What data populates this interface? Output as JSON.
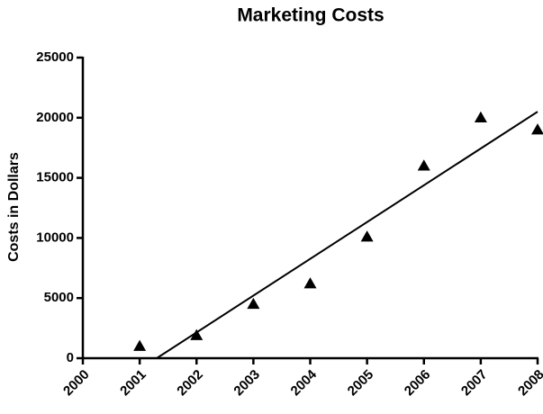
{
  "chart_data": {
    "type": "scatter",
    "title": "Marketing Costs",
    "y_label": "Costs in Dollars",
    "x": [
      2001,
      2002,
      2003,
      2004,
      2005,
      2006,
      2007,
      2008
    ],
    "values": [
      1000,
      1900,
      4500,
      6200,
      10100,
      16000,
      20000,
      19000
    ],
    "color": "#000000",
    "marker": "triangle",
    "trendline": {
      "x": [
        2001.3,
        2008
      ],
      "values": [
        0,
        20500
      ]
    },
    "xlim": [
      2000,
      2008
    ],
    "xticks": [
      2000,
      2001,
      2002,
      2003,
      2004,
      2005,
      2006,
      2007,
      2008
    ],
    "ylim": [
      0,
      25000
    ],
    "yticks": [
      0,
      5000,
      10000,
      15000,
      20000,
      25000
    ],
    "grid": false
  }
}
